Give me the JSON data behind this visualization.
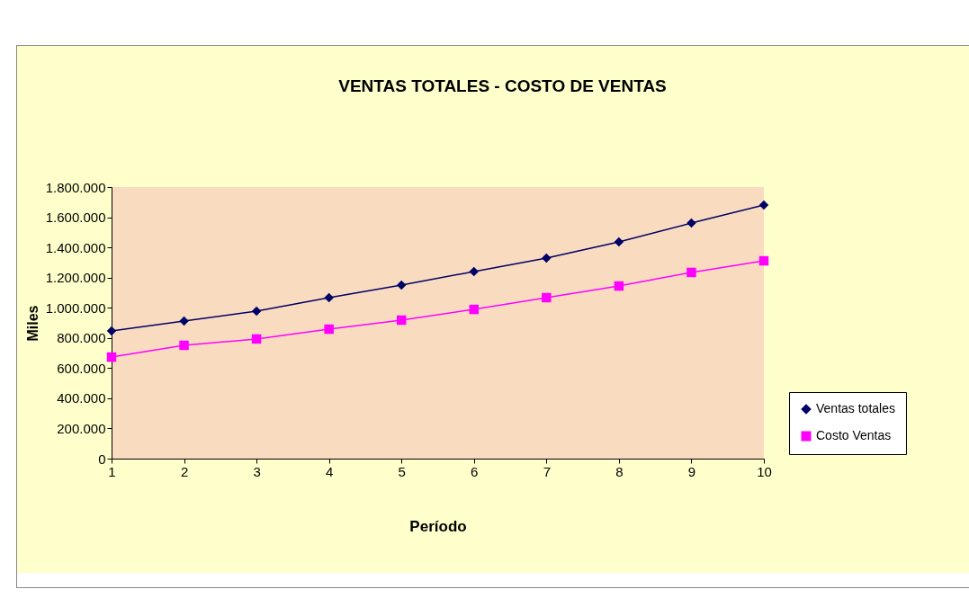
{
  "chart_data": {
    "type": "line",
    "title": "VENTAS  TOTALES  - COSTO DE VENTAS",
    "xlabel": "Período",
    "ylabel": "Miles",
    "categories": [
      "1",
      "2",
      "3",
      "4",
      "5",
      "6",
      "7",
      "8",
      "9",
      "10"
    ],
    "series": [
      {
        "name": "Ventas totales",
        "color": "#000066",
        "marker": "diamond",
        "values": [
          846000,
          912000,
          977000,
          1067000,
          1150000,
          1240000,
          1329000,
          1436000,
          1561000,
          1681000
        ]
      },
      {
        "name": "Costo Ventas",
        "color": "#ff00ff",
        "marker": "square",
        "values": [
          673000,
          751000,
          793000,
          858000,
          918000,
          989000,
          1067000,
          1144000,
          1234000,
          1311000
        ]
      }
    ],
    "ylim": [
      0,
      1800000
    ],
    "yticks": [
      0,
      {
        "value": 200000,
        "label": "200.000"
      },
      {
        "value": 400000,
        "label": "400.000"
      },
      {
        "value": 600000,
        "label": "600.000"
      },
      {
        "value": 800000,
        "label": "800.000"
      },
      {
        "value": 1000000,
        "label": "1.000.000"
      },
      {
        "value": 1200000,
        "label": "1.200.000"
      },
      {
        "value": 1400000,
        "label": "1.400.000"
      },
      {
        "value": 1600000,
        "label": "1.600.000"
      },
      {
        "value": 1800000,
        "label": "1.800.000"
      }
    ],
    "grid": false,
    "legend": "right",
    "line_style": "solid"
  }
}
